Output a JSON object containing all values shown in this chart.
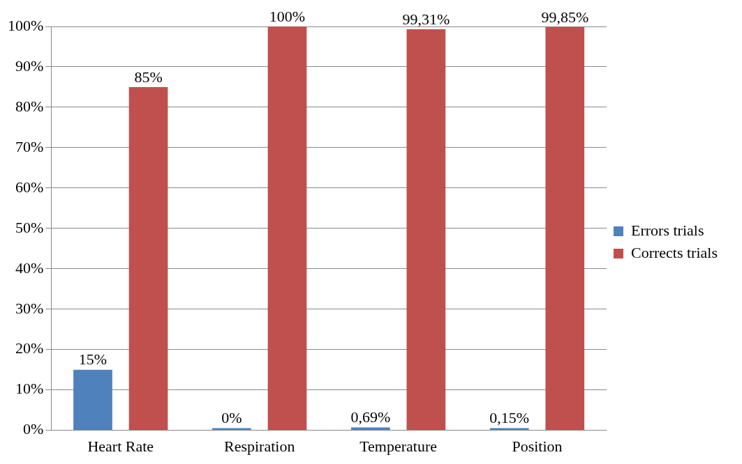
{
  "chart_data": {
    "type": "bar",
    "categories": [
      "Heart Rate",
      "Respiration",
      "Temperature",
      "Position"
    ],
    "series": [
      {
        "name": "Errors trials",
        "color": "#4f81bd",
        "values": [
          15,
          0,
          0.69,
          0.15
        ],
        "value_labels": [
          "15%",
          "0%",
          "0,69%",
          "0,15%"
        ]
      },
      {
        "name": "Corrects trials",
        "color": "#c0504d",
        "values": [
          85,
          100,
          99.31,
          99.85
        ],
        "value_labels": [
          "85%",
          "100%",
          "99,31%",
          "99,85%"
        ]
      }
    ],
    "ylim": [
      0,
      100
    ],
    "yticks": [
      {
        "value": 0,
        "label": "0%"
      },
      {
        "value": 10,
        "label": "10%"
      },
      {
        "value": 20,
        "label": "20%"
      },
      {
        "value": 30,
        "label": "30%"
      },
      {
        "value": 40,
        "label": "40%"
      },
      {
        "value": 50,
        "label": "50%"
      },
      {
        "value": 60,
        "label": "60%"
      },
      {
        "value": 70,
        "label": "70%"
      },
      {
        "value": 80,
        "label": "80%"
      },
      {
        "value": 90,
        "label": "90%"
      },
      {
        "value": 100,
        "label": "100%"
      }
    ],
    "grid": "y",
    "legend": "right"
  }
}
